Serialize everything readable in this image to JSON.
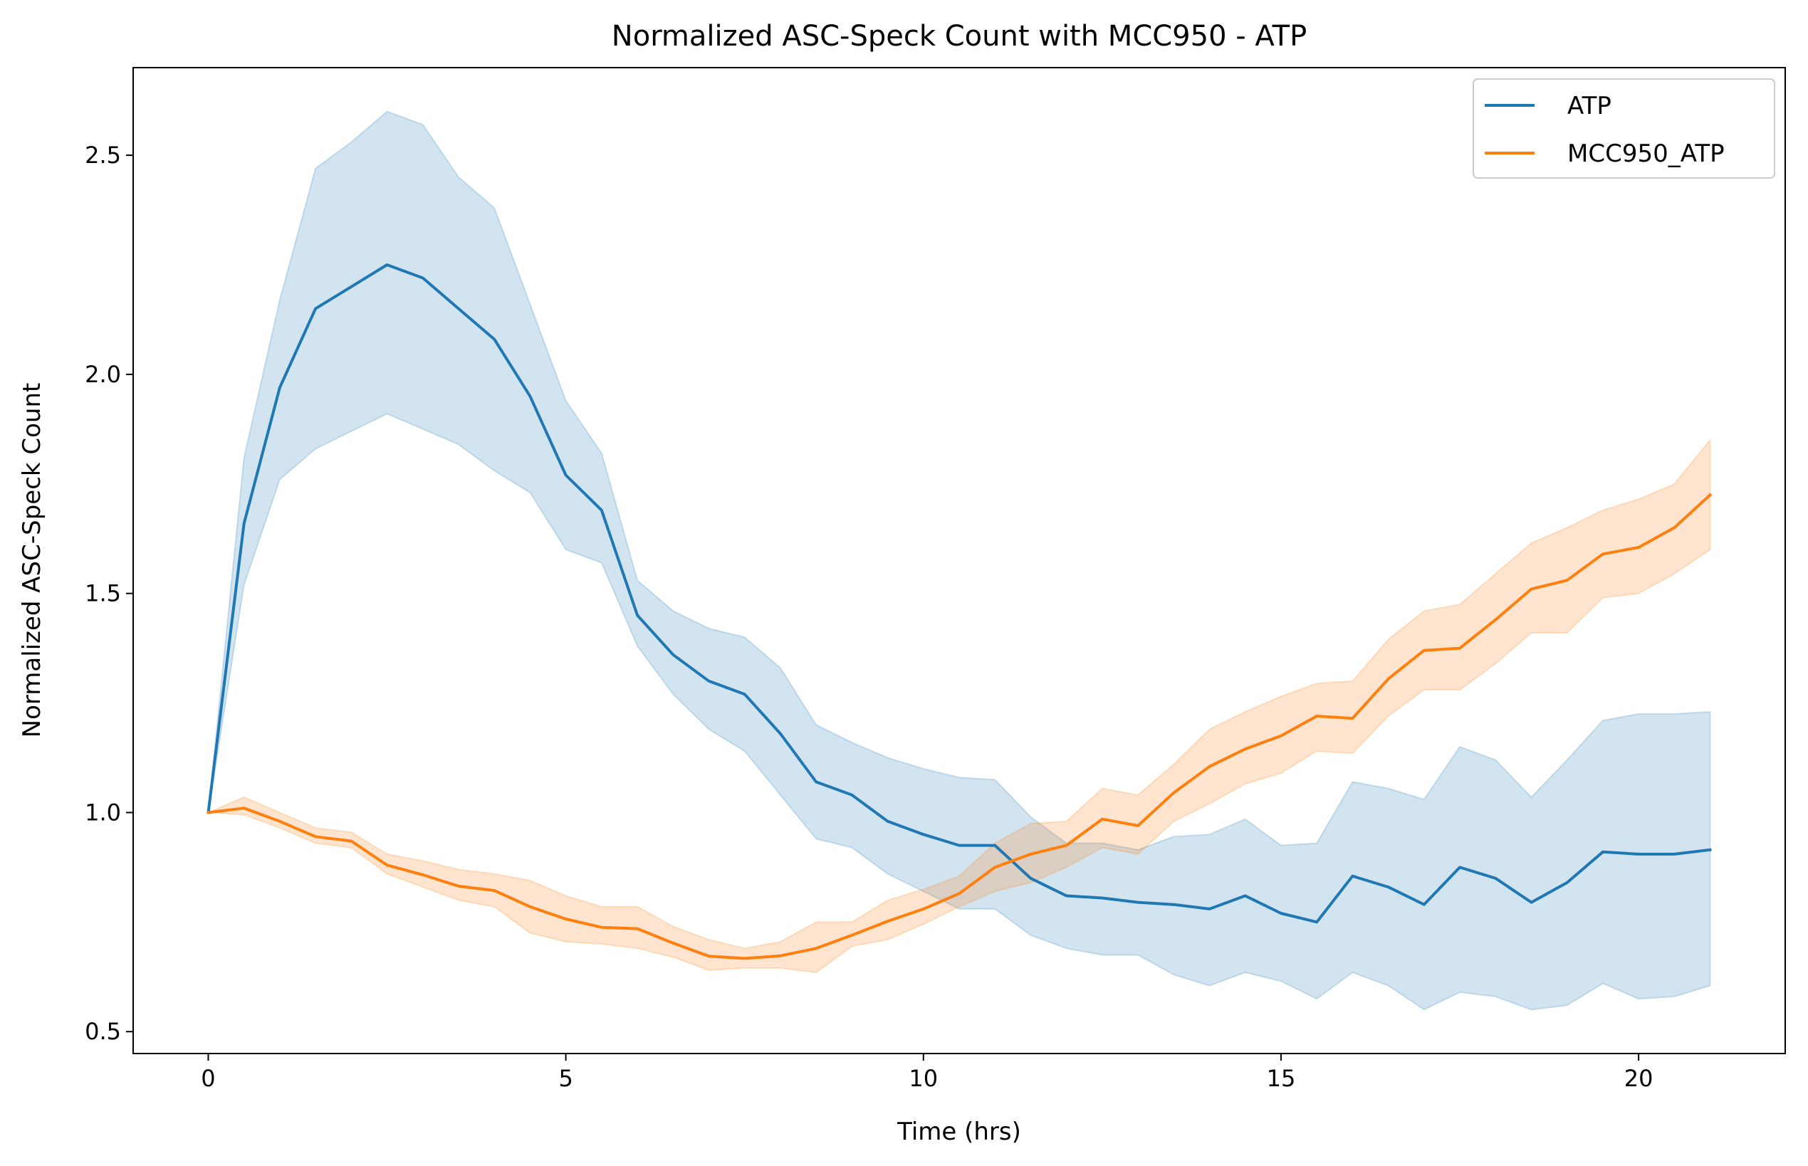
{
  "chart_data": {
    "type": "line",
    "title": "Normalized ASC-Speck Count with MCC950 - ATP",
    "xlabel": "Time (hrs)",
    "ylabel": "Normalized ASC-Speck Count",
    "xlim": [
      -1.05,
      22.05
    ],
    "ylim": [
      0.45,
      2.7
    ],
    "xticks": [
      0,
      5,
      10,
      15,
      20
    ],
    "xtick_labels": [
      "0",
      "5",
      "10",
      "15",
      "20"
    ],
    "yticks": [
      0.5,
      1.0,
      1.5,
      2.0,
      2.5
    ],
    "ytick_labels": [
      "0.5",
      "1.0",
      "1.5",
      "2.0",
      "2.5"
    ],
    "grid": false,
    "legend_position": "top-right",
    "x": [
      0,
      0.5,
      1,
      1.5,
      2,
      2.5,
      3,
      3.5,
      4,
      4.5,
      5,
      5.5,
      6,
      6.5,
      7,
      7.5,
      8,
      8.5,
      9,
      9.5,
      10,
      10.5,
      11,
      11.5,
      12,
      12.5,
      13,
      13.5,
      14,
      14.5,
      15,
      15.5,
      16,
      16.5,
      17,
      17.5,
      18,
      18.5,
      19,
      19.5,
      20,
      20.5,
      21
    ],
    "series": [
      {
        "name": "ATP",
        "color": "#1f77b4",
        "band_color": "#1f77b4",
        "values": [
          1.0,
          1.66,
          1.97,
          2.15,
          2.2,
          2.25,
          2.22,
          2.15,
          2.08,
          1.95,
          1.77,
          1.69,
          1.45,
          1.36,
          1.3,
          1.27,
          1.18,
          1.07,
          1.04,
          0.98,
          0.95,
          0.925,
          0.925,
          0.85,
          0.81,
          0.805,
          0.795,
          0.79,
          0.78,
          0.81,
          0.77,
          0.75,
          0.855,
          0.83,
          0.79,
          0.875,
          0.85,
          0.795,
          0.84,
          0.91,
          0.905,
          0.905,
          0.915
        ],
        "lower": [
          1.0,
          1.52,
          1.76,
          1.83,
          1.87,
          1.91,
          1.875,
          1.84,
          1.78,
          1.73,
          1.6,
          1.57,
          1.38,
          1.27,
          1.19,
          1.14,
          1.04,
          0.94,
          0.92,
          0.86,
          0.82,
          0.78,
          0.78,
          0.72,
          0.69,
          0.675,
          0.675,
          0.63,
          0.605,
          0.635,
          0.615,
          0.575,
          0.635,
          0.605,
          0.55,
          0.59,
          0.58,
          0.55,
          0.56,
          0.61,
          0.575,
          0.58,
          0.605
        ],
        "upper": [
          1.0,
          1.81,
          2.17,
          2.47,
          2.53,
          2.6,
          2.57,
          2.45,
          2.38,
          2.16,
          1.94,
          1.82,
          1.53,
          1.46,
          1.42,
          1.4,
          1.33,
          1.2,
          1.16,
          1.125,
          1.1,
          1.08,
          1.075,
          0.99,
          0.93,
          0.93,
          0.915,
          0.945,
          0.95,
          0.985,
          0.925,
          0.93,
          1.07,
          1.055,
          1.03,
          1.15,
          1.12,
          1.035,
          1.12,
          1.21,
          1.225,
          1.225,
          1.23
        ]
      },
      {
        "name": "MCC950_ATP",
        "color": "#ff7f0e",
        "band_color": "#ff7f0e",
        "values": [
          1.0,
          1.01,
          0.98,
          0.945,
          0.935,
          0.88,
          0.858,
          0.832,
          0.822,
          0.785,
          0.757,
          0.738,
          0.735,
          0.702,
          0.672,
          0.667,
          0.673,
          0.69,
          0.72,
          0.752,
          0.78,
          0.815,
          0.875,
          0.905,
          0.925,
          0.985,
          0.97,
          1.045,
          1.105,
          1.145,
          1.175,
          1.22,
          1.215,
          1.305,
          1.37,
          1.375,
          1.44,
          1.51,
          1.53,
          1.59,
          1.605,
          1.65,
          1.725
        ],
        "lower": [
          1.0,
          0.995,
          0.965,
          0.93,
          0.92,
          0.86,
          0.83,
          0.8,
          0.785,
          0.725,
          0.705,
          0.7,
          0.69,
          0.67,
          0.64,
          0.645,
          0.645,
          0.635,
          0.695,
          0.71,
          0.745,
          0.785,
          0.82,
          0.84,
          0.875,
          0.92,
          0.905,
          0.98,
          1.02,
          1.065,
          1.09,
          1.14,
          1.135,
          1.22,
          1.28,
          1.28,
          1.34,
          1.41,
          1.41,
          1.49,
          1.5,
          1.545,
          1.6
        ],
        "upper": [
          1.0,
          1.035,
          1.0,
          0.965,
          0.955,
          0.905,
          0.89,
          0.87,
          0.86,
          0.845,
          0.81,
          0.785,
          0.785,
          0.74,
          0.71,
          0.69,
          0.705,
          0.75,
          0.75,
          0.8,
          0.825,
          0.855,
          0.93,
          0.975,
          0.98,
          1.055,
          1.04,
          1.11,
          1.19,
          1.23,
          1.265,
          1.295,
          1.3,
          1.395,
          1.46,
          1.475,
          1.545,
          1.615,
          1.65,
          1.69,
          1.715,
          1.75,
          1.85
        ]
      }
    ]
  }
}
